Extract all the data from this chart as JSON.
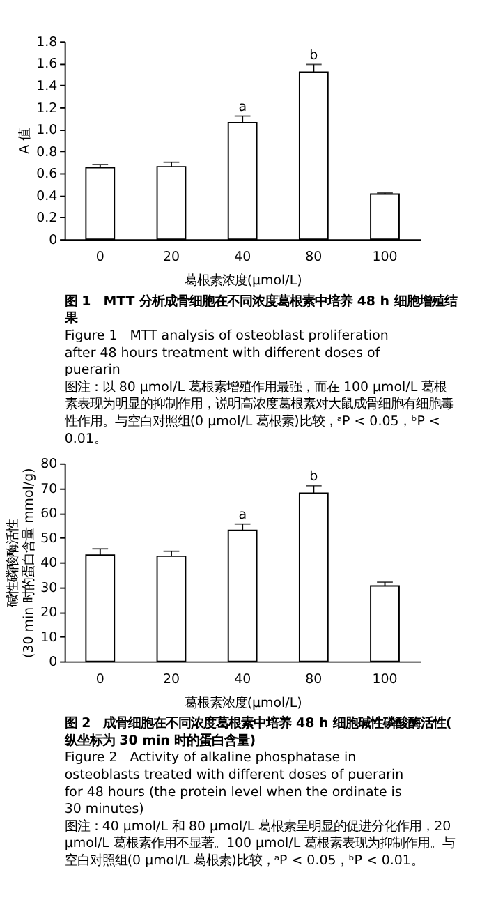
{
  "chart_data": [
    {
      "type": "bar",
      "title": "图 1　MTT 分析成骨细胞在不同浓度葛根素中培养 48 h 细胞增殖结果",
      "subtitle": "Figure 1　MTT analysis of osteoblast proliferation after 48 hours treatment with different doses of puerarin",
      "xlabel": "葛根素浓度(μmol/L)",
      "ylabel": "A 值",
      "categories": [
        "0",
        "20",
        "40",
        "80",
        "100"
      ],
      "values": [
        0.65,
        0.66,
        1.06,
        1.52,
        0.41
      ],
      "errors": [
        0.03,
        0.04,
        0.06,
        0.07,
        0.01
      ],
      "color": "#ffffff",
      "ylim": [
        0,
        1.8
      ],
      "yticks": [
        0,
        0.2,
        0.4,
        0.6,
        0.8,
        {
          "value": 1,
          "label": "1.0"
        },
        1.2,
        1.4,
        1.6,
        1.8
      ],
      "grid": false,
      "annotations": [
        {
          "text": "a",
          "x": "40",
          "y": 1.12
        },
        {
          "text": "b",
          "x": "80",
          "y": 1.59
        },
        "图注：以 80 μmol/L 葛根素增殖作用最强，而在 100 μmol/L 葛根素表现为明显的抑制作用，说明高浓度葛根素对大鼠成骨细胞有细胞毒性作用。与空白对照组(0 μmol/L 葛根素)比较，ᵃP < 0.05，ᵇP < 0.01。"
      ]
    },
    {
      "type": "bar",
      "title": "图 2　成骨细胞在不同浓度葛根素中培养 48 h 细胞碱性磷酸酶活性(纵坐标为 30 min 时的蛋白含量)",
      "subtitle": "Figure 2　Activity of alkaline phosphatase in osteoblasts treated with different doses of puerarin for 48 hours (the protein level when the ordinate is 30 minutes)",
      "xlabel": "葛根素浓度(μmol/L)",
      "ylabel": "碱性磷酸酶活性\n(30 min 时的蛋白含量 mmol/g)",
      "categories": [
        "0",
        "20",
        "40",
        "80",
        "100"
      ],
      "values": [
        43,
        42.5,
        53,
        68,
        30.5
      ],
      "errors": [
        2.5,
        2,
        2.5,
        3,
        1.5
      ],
      "color": "#ffffff",
      "ylim": [
        0,
        80
      ],
      "yticks": [
        0,
        10,
        20,
        30,
        40,
        50,
        60,
        70,
        80
      ],
      "grid": false,
      "annotations": [
        {
          "text": "a",
          "x": "40",
          "y": 55.5
        },
        {
          "text": "b",
          "x": "80",
          "y": 71
        },
        "图注：40 μmol/L 和 80 μmol/L 葛根素呈明显的促进分化作用，20 μmol/L 葛根素作用不显著。100 μmol/L 葛根素表现为抑制作用。与空白对照组(0 μmol/L 葛根素)比较，ᵃP < 0.05，ᵇP < 0.01。"
      ]
    }
  ]
}
